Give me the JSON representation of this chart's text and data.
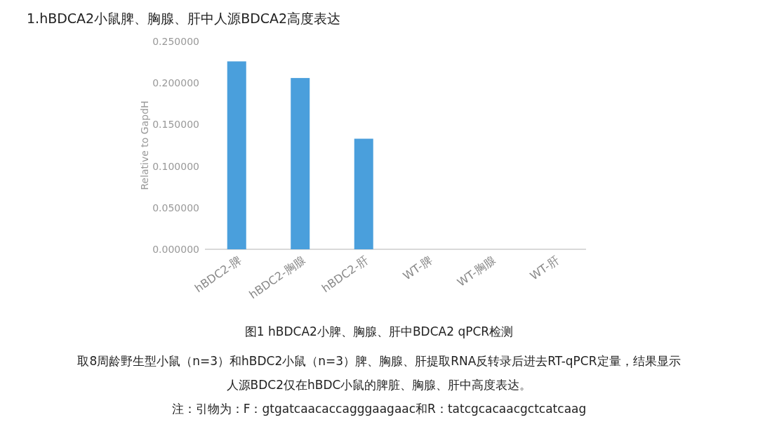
{
  "chart_data": {
    "type": "bar",
    "title": "1.hBDCA2小鼠脾、胸腺、肝中人源BDCA2高度表达",
    "categories": [
      "hBDC2-脾",
      "hBDC2-胸腺",
      "hBDC2-肝",
      "WT-脾",
      "WT-胸腺",
      "WT-肝"
    ],
    "values": [
      0.226,
      0.206,
      0.133,
      0,
      0,
      0
    ],
    "color": "#4a9fdc",
    "ylabel": "Relative  to  GapdH",
    "ylim": [
      0,
      0.25
    ],
    "yticks": [
      {
        "value": 0,
        "label": "0.000000"
      },
      {
        "value": 0.05,
        "label": "0.050000"
      },
      {
        "value": 0.1,
        "label": "0.100000"
      },
      {
        "value": 0.15,
        "label": "0.150000"
      },
      {
        "value": 0.2,
        "label": "0.200000"
      },
      {
        "value": 0.25,
        "label": "0.250000"
      }
    ],
    "grid": false,
    "annotations": [
      "图1  hBDCA2小脾、胸腺、肝中BDCA2 qPCR检测",
      "取8周龄野生型小鼠（n=3）和hBDC2小鼠（n=3）脾、胸腺、肝提取RNA反转录后进去RT-qPCR定量，结果显示",
      "人源BDC2仅在hBDC小鼠的脾脏、胸腺、肝中高度表达。",
      "注：引物为：F：gtgatcaacaccagggaagaac和R：tatcgcacaacgctcatcaag"
    ]
  }
}
